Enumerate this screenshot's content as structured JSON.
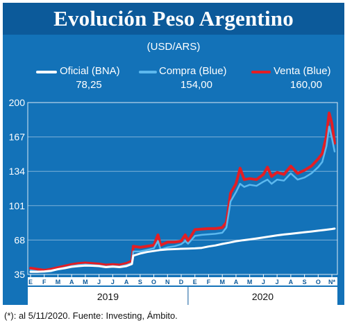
{
  "title": "Evolución Peso Argentino",
  "subtitle": "(USD/ARS)",
  "footnote": "(*): al 5/11/2020. Fuente: Investing, Ámbito.",
  "colors": {
    "frame": "#1372b8",
    "title_bar": "#0c5a9a",
    "oficial": "#ffffff",
    "compra": "#5cb8ee",
    "venta": "#e31e24"
  },
  "legend": [
    {
      "label": "Oficial (BNA)",
      "value": "78,25",
      "color": "#ffffff"
    },
    {
      "label": "Compra (Blue)",
      "value": "154,00",
      "color": "#5cb8ee"
    },
    {
      "label": "Venta (Blue)",
      "value": "160,00",
      "color": "#e31e24"
    }
  ],
  "chart_data": {
    "type": "line",
    "y_ticks": [
      "200",
      "167",
      "134",
      "101",
      "68",
      "35"
    ],
    "ylim": [
      35,
      200
    ],
    "x_month_labels": [
      "E",
      "F",
      "M",
      "A",
      "M",
      "J",
      "J",
      "A",
      "S",
      "O",
      "N",
      "D",
      "E",
      "F",
      "M",
      "A",
      "M",
      "J",
      "J",
      "A",
      "S",
      "O",
      "N*"
    ],
    "x_years": [
      "2019",
      "2020"
    ],
    "x_months_index": [
      0,
      1,
      2,
      3,
      4,
      5,
      6,
      7,
      8,
      9,
      10,
      11,
      12,
      13,
      14,
      15,
      16,
      17,
      18,
      19,
      20,
      21,
      22
    ],
    "x_range": [
      0,
      22.2
    ],
    "grid": true,
    "legend_position": "top",
    "series": [
      {
        "name": "Oficial (BNA)",
        "x": [
          0,
          0.5,
          1,
          1.5,
          2,
          2.5,
          3,
          3.5,
          4,
          4.5,
          5,
          5.5,
          6,
          6.5,
          7,
          7.4,
          7.5,
          8,
          8.5,
          9,
          9.5,
          10,
          10.5,
          11,
          11.5,
          12,
          12.5,
          13,
          13.5,
          14,
          14.5,
          15,
          15.5,
          16,
          16.5,
          17,
          17.5,
          18,
          18.5,
          19,
          19.5,
          20,
          20.5,
          21,
          21.5,
          22,
          22.2
        ],
        "values": [
          37.5,
          37.5,
          37.8,
          38.5,
          40,
          41,
          42.3,
          43,
          43.5,
          43.3,
          43,
          42,
          42.5,
          42,
          43,
          45,
          53,
          55,
          56.5,
          57.5,
          58.5,
          59,
          59.3,
          59.6,
          59.8,
          60,
          60.5,
          61.8,
          62.8,
          64.3,
          65.5,
          66.8,
          67.8,
          68.6,
          69.5,
          70.5,
          71.5,
          72.5,
          73.3,
          74,
          74.8,
          75.5,
          76.2,
          77,
          77.8,
          78.6,
          79
        ]
      },
      {
        "name": "Compra (Blue)",
        "x": [
          0,
          0.5,
          1,
          1.5,
          2,
          2.5,
          3,
          3.5,
          4,
          4.5,
          5,
          5.5,
          6,
          6.5,
          7,
          7.4,
          7.5,
          8,
          8.5,
          9,
          9.3,
          9.5,
          10,
          10.5,
          11,
          11.3,
          11.5,
          12,
          12.5,
          13,
          13.5,
          14,
          14.3,
          14.6,
          15,
          15.3,
          15.6,
          16,
          16.5,
          17,
          17.3,
          17.6,
          18,
          18.5,
          19,
          19.5,
          20,
          20.5,
          21,
          21.3,
          21.6,
          21.8,
          22,
          22.2
        ],
        "values": [
          39,
          38,
          37.5,
          38,
          40,
          41.5,
          43,
          44,
          44.5,
          44,
          43.5,
          42.5,
          43,
          42.5,
          44,
          46,
          57,
          57,
          58.5,
          60,
          67,
          59,
          61,
          62,
          64,
          67,
          64.5,
          72,
          73,
          73.5,
          74,
          75,
          80,
          105,
          114,
          122,
          119,
          121,
          120,
          124,
          126,
          122,
          126,
          125,
          132,
          126,
          128,
          132,
          138,
          143,
          158,
          177,
          166,
          153
        ]
      },
      {
        "name": "Venta (Blue)",
        "x": [
          0,
          0.5,
          1,
          1.5,
          2,
          2.5,
          3,
          3.5,
          4,
          4.5,
          5,
          5.5,
          6,
          6.5,
          7,
          7.4,
          7.5,
          8,
          8.5,
          9,
          9.3,
          9.5,
          10,
          10.5,
          11,
          11.3,
          11.5,
          12,
          12.5,
          13,
          13.5,
          14,
          14.3,
          14.6,
          15,
          15.3,
          15.6,
          16,
          16.5,
          17,
          17.3,
          17.6,
          18,
          18.5,
          19,
          19.5,
          20,
          20.5,
          21,
          21.3,
          21.6,
          21.8,
          22,
          22.2
        ],
        "values": [
          41,
          40,
          39,
          40,
          41.5,
          43,
          44.5,
          45.5,
          46,
          45.5,
          45,
          44,
          44.5,
          44,
          45.5,
          48,
          62,
          61,
          62,
          63,
          73,
          63,
          66,
          66,
          67,
          73,
          67,
          78,
          78.5,
          79,
          79,
          80,
          85,
          113,
          122,
          137,
          126,
          127,
          126,
          131,
          138,
          129,
          133,
          131,
          139,
          132,
          135,
          139,
          146,
          151,
          168,
          190,
          180,
          161
        ]
      }
    ]
  }
}
